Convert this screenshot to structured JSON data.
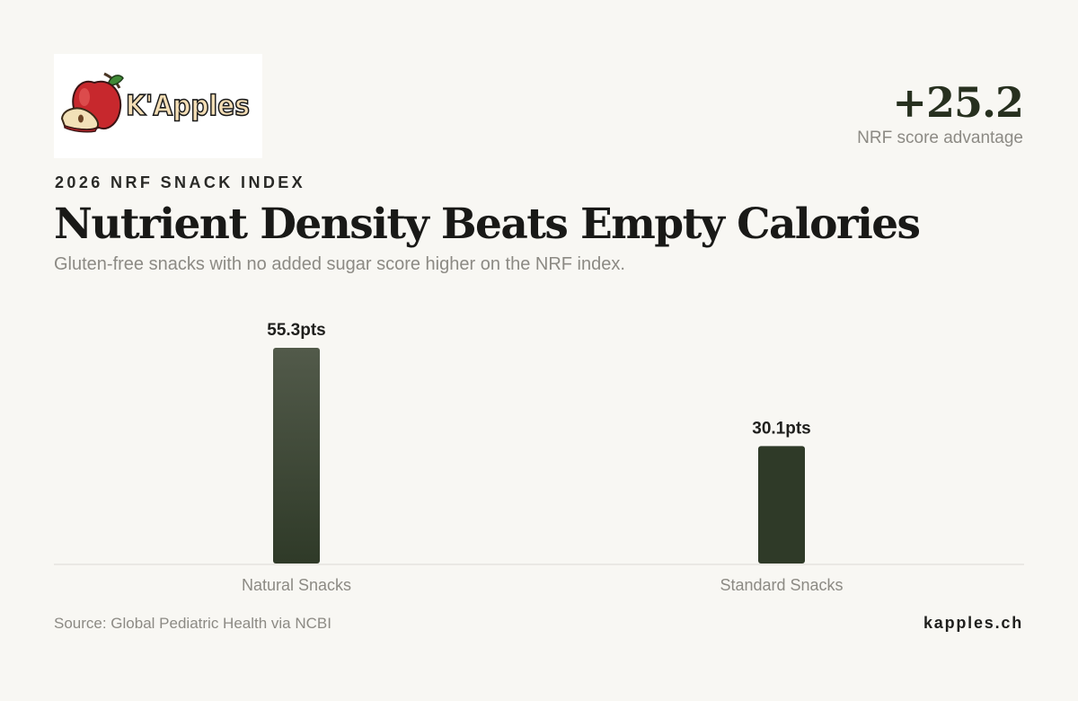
{
  "brand": {
    "logo_text": "K'Apples",
    "logo_icon": "apple-with-slice-icon",
    "website": "kapples.ch"
  },
  "header": {
    "kicker": "2026 NRF SNACK INDEX",
    "title": "Nutrient Density Beats Empty Calories",
    "subtitle": "Gluten-free snacks with no added sugar score higher on the NRF index."
  },
  "stat": {
    "value": "+25.2",
    "label": "NRF score advantage"
  },
  "colors": {
    "background": "#f8f7f3",
    "bar_dark": "#2f3a28",
    "bar_light": "#525a4a",
    "axis": "#dcdad4",
    "muted_text": "#8c8a84"
  },
  "chart_data": {
    "type": "bar",
    "categories": [
      "Natural Snacks",
      "Standard Snacks"
    ],
    "values": [
      55.3,
      30.1
    ],
    "value_labels": [
      "55.3pts",
      "30.1pts"
    ],
    "unit": "pts",
    "ylim": [
      0,
      60
    ],
    "grid": false,
    "legend": "none"
  },
  "footer": {
    "source": "Source: Global Pediatric Health via NCBI"
  }
}
